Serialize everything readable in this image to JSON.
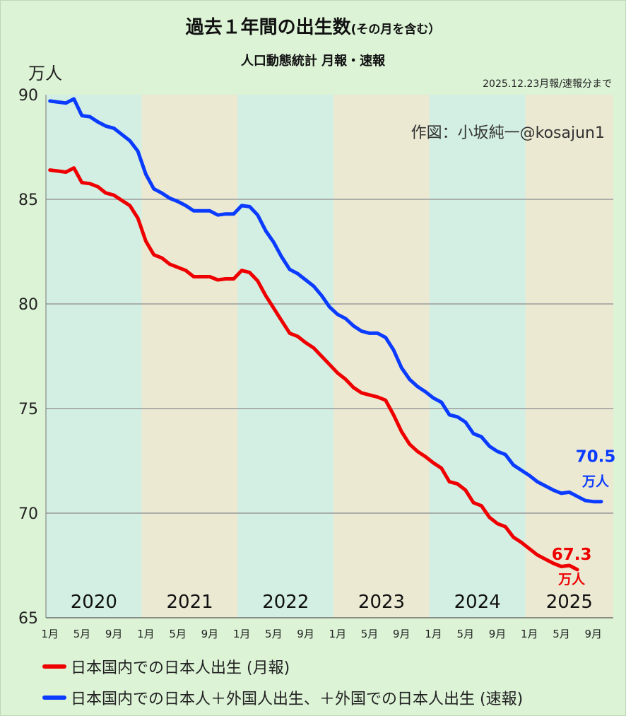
{
  "title": {
    "main": "過去１年間の出生数",
    "suffix": "(その月を含む）",
    "subtitle": "人口動態統計 月報・速報"
  },
  "unit_label": "万人",
  "data_note": "2025.12.23月報/速報分まで",
  "credit": "作図：小坂純一@kosajun1",
  "colors": {
    "background": "#dcf3d6",
    "band_a": "#d3efe3",
    "band_b": "#ece9d3",
    "red": "#ee0000",
    "blue": "#0a3bff",
    "grid": "#9a9a9a"
  },
  "chart_data": {
    "type": "line",
    "title": "過去１年間の出生数(その月を含む）",
    "subtitle": "人口動態統計 月報・速報",
    "ylabel": "万人",
    "ylim": [
      65,
      90
    ],
    "yticks": [
      65,
      70,
      75,
      80,
      85,
      90
    ],
    "x_start": "2020-01",
    "x_months": 71,
    "xtick_months": [
      "1月",
      "5月",
      "9月"
    ],
    "year_bands": [
      "2020",
      "2021",
      "2022",
      "2023",
      "2024",
      "2025"
    ],
    "series": [
      {
        "name": "日本国内での日本人出生 (月報)",
        "color": "#ee0000",
        "end_label": "67.3",
        "end_unit": "万人",
        "values": [
          86.4,
          86.35,
          86.3,
          86.5,
          85.8,
          85.75,
          85.6,
          85.3,
          85.2,
          84.95,
          84.7,
          84.1,
          83.0,
          82.35,
          82.2,
          81.9,
          81.75,
          81.6,
          81.3,
          81.3,
          81.3,
          81.15,
          81.2,
          81.2,
          81.6,
          81.5,
          81.1,
          80.4,
          79.8,
          79.2,
          78.6,
          78.45,
          78.15,
          77.9,
          77.5,
          77.1,
          76.7,
          76.4,
          76.0,
          75.75,
          75.65,
          75.55,
          75.4,
          74.7,
          73.9,
          73.3,
          72.95,
          72.7,
          72.4,
          72.15,
          71.5,
          71.4,
          71.1,
          70.5,
          70.35,
          69.8,
          69.5,
          69.35,
          68.85,
          68.6,
          68.3,
          68.0,
          67.8,
          67.6,
          67.45,
          67.5,
          67.3
        ]
      },
      {
        "name": "日本国内での日本人＋外国人出生、＋外国での日本人出生 (速報)",
        "color": "#0a3bff",
        "end_label": "70.5",
        "end_unit": "万人",
        "values": [
          89.7,
          89.65,
          89.6,
          89.8,
          89.0,
          88.95,
          88.7,
          88.5,
          88.4,
          88.1,
          87.8,
          87.3,
          86.2,
          85.5,
          85.3,
          85.05,
          84.9,
          84.7,
          84.45,
          84.45,
          84.45,
          84.25,
          84.3,
          84.3,
          84.7,
          84.65,
          84.25,
          83.5,
          82.95,
          82.25,
          81.65,
          81.45,
          81.15,
          80.85,
          80.4,
          79.85,
          79.5,
          79.3,
          78.95,
          78.7,
          78.6,
          78.6,
          78.4,
          77.8,
          76.95,
          76.4,
          76.05,
          75.8,
          75.5,
          75.3,
          74.7,
          74.6,
          74.35,
          73.8,
          73.65,
          73.2,
          72.95,
          72.8,
          72.3,
          72.05,
          71.8,
          71.5,
          71.3,
          71.1,
          70.95,
          71.0,
          70.8,
          70.6,
          70.55,
          70.55
        ]
      }
    ],
    "legend": [
      "日本国内での日本人出生 (月報)",
      "日本国内での日本人＋外国人出生、＋外国での日本人出生 (速報)"
    ]
  }
}
